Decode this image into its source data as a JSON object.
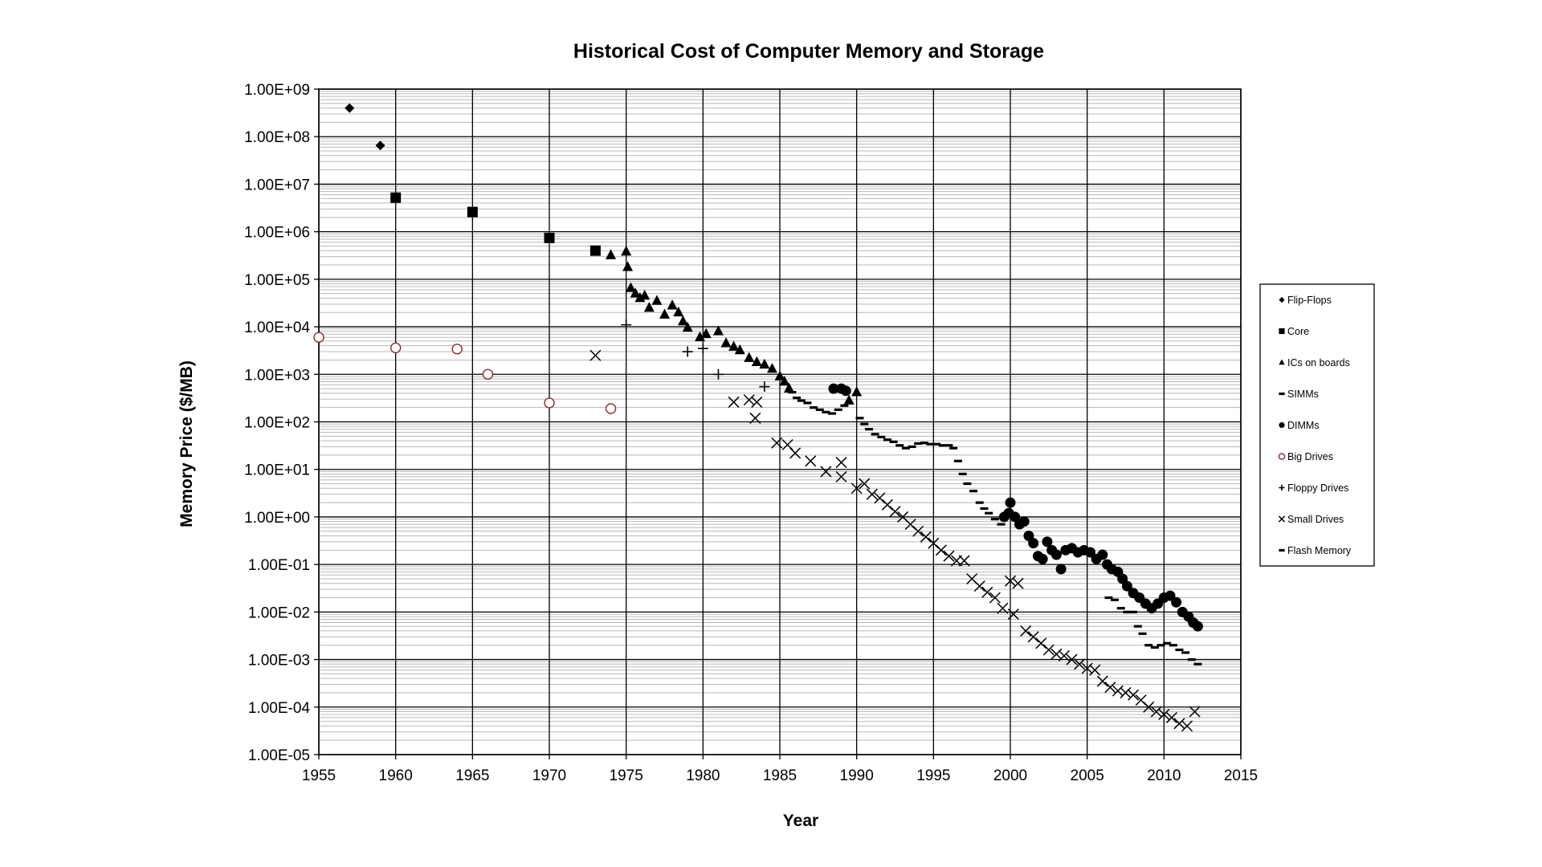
{
  "chart_data": {
    "type": "scatter",
    "title": "Historical Cost of Computer Memory and Storage",
    "xlabel": "Year",
    "ylabel": "Memory Price ($/MB)",
    "xlim": [
      1955,
      2015
    ],
    "ylim": [
      1e-05,
      1000000000.0
    ],
    "yscale": "log",
    "grid": true,
    "legend_position": "right",
    "x_ticks": [
      "1955",
      "1960",
      "1965",
      "1970",
      "1975",
      "1980",
      "1985",
      "1990",
      "1995",
      "2000",
      "2005",
      "2010",
      "2015"
    ],
    "y_ticks": [
      "1.00E+09",
      "1.00E+08",
      "1.00E+07",
      "1.00E+06",
      "1.00E+05",
      "1.00E+04",
      "1.00E+03",
      "1.00E+02",
      "1.00E+01",
      "1.00E+00",
      "1.00E-01",
      "1.00E-02",
      "1.00E-03",
      "1.00E-04",
      "1.00E-05"
    ],
    "series": [
      {
        "name": "Flip-Flops",
        "marker": "diamond",
        "color": "#000000",
        "points": [
          [
            1957,
            400000000.0
          ],
          [
            1959,
            65000000.0
          ]
        ]
      },
      {
        "name": "Core",
        "marker": "square",
        "color": "#000000",
        "points": [
          [
            1960,
            5200000.0
          ],
          [
            1965,
            2600000.0
          ],
          [
            1970,
            740000.0
          ],
          [
            1973,
            400000.0
          ]
        ]
      },
      {
        "name": "ICs on boards",
        "marker": "triangle",
        "color": "#000000",
        "points": [
          [
            1974,
            320000.0
          ],
          [
            1975,
            380000.0
          ],
          [
            1975.1,
            180000.0
          ],
          [
            1975.3,
            65000.0
          ],
          [
            1975.6,
            50000.0
          ],
          [
            1975.9,
            40000.0
          ],
          [
            1976.2,
            45000.0
          ],
          [
            1976.5,
            25000.0
          ],
          [
            1977,
            35000.0
          ],
          [
            1977.5,
            18000.0
          ],
          [
            1978,
            28000.0
          ],
          [
            1978.4,
            20000.0
          ],
          [
            1978.7,
            13000.0
          ],
          [
            1979,
            9500.0
          ],
          [
            1979.8,
            6000.0
          ],
          [
            1980.2,
            7000.0
          ],
          [
            1981,
            8000.0
          ],
          [
            1981.5,
            4500.0
          ],
          [
            1982,
            3800.0
          ],
          [
            1982.4,
            3200.0
          ],
          [
            1983,
            2200.0
          ],
          [
            1983.5,
            1800.0
          ],
          [
            1984,
            1600.0
          ],
          [
            1984.5,
            1300.0
          ],
          [
            1985,
            900.0
          ],
          [
            1985.3,
            700.0
          ],
          [
            1985.6,
            500.0
          ],
          [
            1989.5,
            280.0
          ],
          [
            1990,
            420.0
          ]
        ]
      },
      {
        "name": "SIMMs",
        "marker": "dash",
        "color": "#000000",
        "points": [
          [
            1985.8,
            420.0
          ],
          [
            1986.1,
            320.0
          ],
          [
            1986.4,
            280.0
          ],
          [
            1986.8,
            250.0
          ],
          [
            1987.2,
            200.0
          ],
          [
            1987.6,
            180.0
          ],
          [
            1988,
            160.0
          ],
          [
            1988.4,
            150.0
          ],
          [
            1988.8,
            180.0
          ],
          [
            1989.2,
            220.0
          ],
          [
            1990.2,
            120.0
          ],
          [
            1990.5,
            90.0
          ],
          [
            1990.8,
            70.0
          ],
          [
            1991.2,
            55.0
          ],
          [
            1991.6,
            48.0
          ],
          [
            1992,
            42.0
          ],
          [
            1992.4,
            38.0
          ],
          [
            1992.8,
            32.0
          ],
          [
            1993.2,
            28.0
          ],
          [
            1993.6,
            30.0
          ],
          [
            1994,
            35.0
          ],
          [
            1994.4,
            36.0
          ],
          [
            1994.8,
            34.0
          ],
          [
            1995.2,
            34.0
          ],
          [
            1995.6,
            32.0
          ],
          [
            1996,
            32.0
          ],
          [
            1996.3,
            28.0
          ],
          [
            1996.6,
            15.0
          ],
          [
            1996.9,
            8.0
          ],
          [
            1997.2,
            5.0
          ],
          [
            1997.6,
            3.5
          ],
          [
            1998,
            2.0
          ],
          [
            1998.3,
            1.5
          ],
          [
            1998.6,
            1.2
          ],
          [
            1999,
            0.9
          ],
          [
            1999.4,
            0.7
          ]
        ]
      },
      {
        "name": "DIMMs",
        "marker": "circle",
        "color": "#000000",
        "points": [
          [
            1988.5,
            500.0
          ],
          [
            1989,
            500.0
          ],
          [
            1989.3,
            450.0
          ],
          [
            1999.6,
            1.0
          ],
          [
            1999.9,
            1.2
          ],
          [
            2000,
            2.0
          ],
          [
            2000.3,
            1.0
          ],
          [
            2000.6,
            0.7
          ],
          [
            2000.9,
            0.8
          ],
          [
            2001.2,
            0.4
          ],
          [
            2001.5,
            0.28
          ],
          [
            2001.8,
            0.15
          ],
          [
            2002.1,
            0.13
          ],
          [
            2002.4,
            0.3
          ],
          [
            2002.7,
            0.2
          ],
          [
            2003,
            0.16
          ],
          [
            2003.3,
            0.08
          ],
          [
            2003.6,
            0.2
          ],
          [
            2004,
            0.22
          ],
          [
            2004.4,
            0.18
          ],
          [
            2004.8,
            0.2
          ],
          [
            2005.2,
            0.18
          ],
          [
            2005.6,
            0.13
          ],
          [
            2006,
            0.16
          ],
          [
            2006.3,
            0.1
          ],
          [
            2006.6,
            0.08
          ],
          [
            2007,
            0.07
          ],
          [
            2007.3,
            0.05
          ],
          [
            2007.6,
            0.035
          ],
          [
            2008,
            0.025
          ],
          [
            2008.4,
            0.02
          ],
          [
            2008.8,
            0.015
          ],
          [
            2009.2,
            0.012
          ],
          [
            2009.6,
            0.015
          ],
          [
            2010,
            0.02
          ],
          [
            2010.4,
            0.022
          ],
          [
            2010.8,
            0.016
          ],
          [
            2011.2,
            0.01
          ],
          [
            2011.6,
            0.008
          ],
          [
            2011.9,
            0.006
          ],
          [
            2012.2,
            0.005
          ]
        ]
      },
      {
        "name": "Big Drives",
        "marker": "open-circle",
        "color": "#8b2a2a",
        "points": [
          [
            1955,
            6000.0
          ],
          [
            1960,
            3600.0
          ],
          [
            1964,
            3400.0
          ],
          [
            1966,
            1000.0
          ],
          [
            1970,
            250.0
          ],
          [
            1974,
            190.0
          ]
        ]
      },
      {
        "name": "Floppy Drives",
        "marker": "plus",
        "color": "#000000",
        "points": [
          [
            1975,
            11000.0
          ],
          [
            1979,
            3000.0
          ],
          [
            1980,
            3500.0
          ],
          [
            1981,
            1000.0
          ],
          [
            1984,
            550.0
          ]
        ]
      },
      {
        "name": "Small Drives",
        "marker": "x",
        "color": "#000000",
        "points": [
          [
            1973,
            2500.0
          ],
          [
            1982,
            260.0
          ],
          [
            1983,
            290.0
          ],
          [
            1983.5,
            260.0
          ],
          [
            1983.4,
            120.0
          ],
          [
            1984.8,
            36.0
          ],
          [
            1985.5,
            33.0
          ],
          [
            1986,
            22.0
          ],
          [
            1987,
            15.0
          ],
          [
            1988,
            9.0
          ],
          [
            1989,
            14.0
          ],
          [
            1989,
            7.0
          ],
          [
            1990,
            4.0
          ],
          [
            1990.5,
            5.0
          ],
          [
            1991,
            3.0
          ],
          [
            1991.5,
            2.5
          ],
          [
            1992,
            1.8
          ],
          [
            1992.5,
            1.3
          ],
          [
            1993,
            1.0
          ],
          [
            1993.5,
            0.7
          ],
          [
            1994,
            0.5
          ],
          [
            1994.5,
            0.38
          ],
          [
            1995,
            0.28
          ],
          [
            1995.5,
            0.2
          ],
          [
            1996,
            0.15
          ],
          [
            1996.5,
            0.12
          ],
          [
            1997,
            0.12
          ],
          [
            1997.5,
            0.05
          ],
          [
            1998,
            0.035
          ],
          [
            1998.5,
            0.026
          ],
          [
            1999,
            0.02
          ],
          [
            1999.5,
            0.012
          ],
          [
            2000,
            0.045
          ],
          [
            2000.2,
            0.009
          ],
          [
            2000.5,
            0.04
          ],
          [
            2001,
            0.004
          ],
          [
            2001.5,
            0.003
          ],
          [
            2002,
            0.0022
          ],
          [
            2002.5,
            0.0016
          ],
          [
            2003,
            0.0013
          ],
          [
            2003.5,
            0.0012
          ],
          [
            2004,
            0.001
          ],
          [
            2004.5,
            0.0008
          ],
          [
            2005,
            0.00065
          ],
          [
            2005.5,
            0.0006
          ],
          [
            2006,
            0.00035
          ],
          [
            2006.5,
            0.00026
          ],
          [
            2007,
            0.00022
          ],
          [
            2007.5,
            0.0002
          ],
          [
            2008,
            0.00018
          ],
          [
            2008.5,
            0.00014
          ],
          [
            2009,
            0.0001
          ],
          [
            2009.5,
            8e-05
          ],
          [
            2010,
            7e-05
          ],
          [
            2010.5,
            6e-05
          ],
          [
            2011,
            4.5e-05
          ],
          [
            2011.5,
            4e-05
          ],
          [
            2012,
            8e-05
          ]
        ]
      },
      {
        "name": "Flash Memory",
        "marker": "dash",
        "color": "#000000",
        "points": [
          [
            2006.4,
            0.02
          ],
          [
            2006.8,
            0.018
          ],
          [
            2007.2,
            0.012
          ],
          [
            2007.6,
            0.01
          ],
          [
            2008,
            0.01
          ],
          [
            2008.3,
            0.005
          ],
          [
            2008.6,
            0.0035
          ],
          [
            2009,
            0.002
          ],
          [
            2009.4,
            0.0018
          ],
          [
            2009.8,
            0.002
          ],
          [
            2010.2,
            0.0022
          ],
          [
            2010.6,
            0.002
          ],
          [
            2011,
            0.0016
          ],
          [
            2011.4,
            0.0014
          ],
          [
            2011.8,
            0.001
          ],
          [
            2012.2,
            0.0008
          ]
        ]
      }
    ]
  }
}
